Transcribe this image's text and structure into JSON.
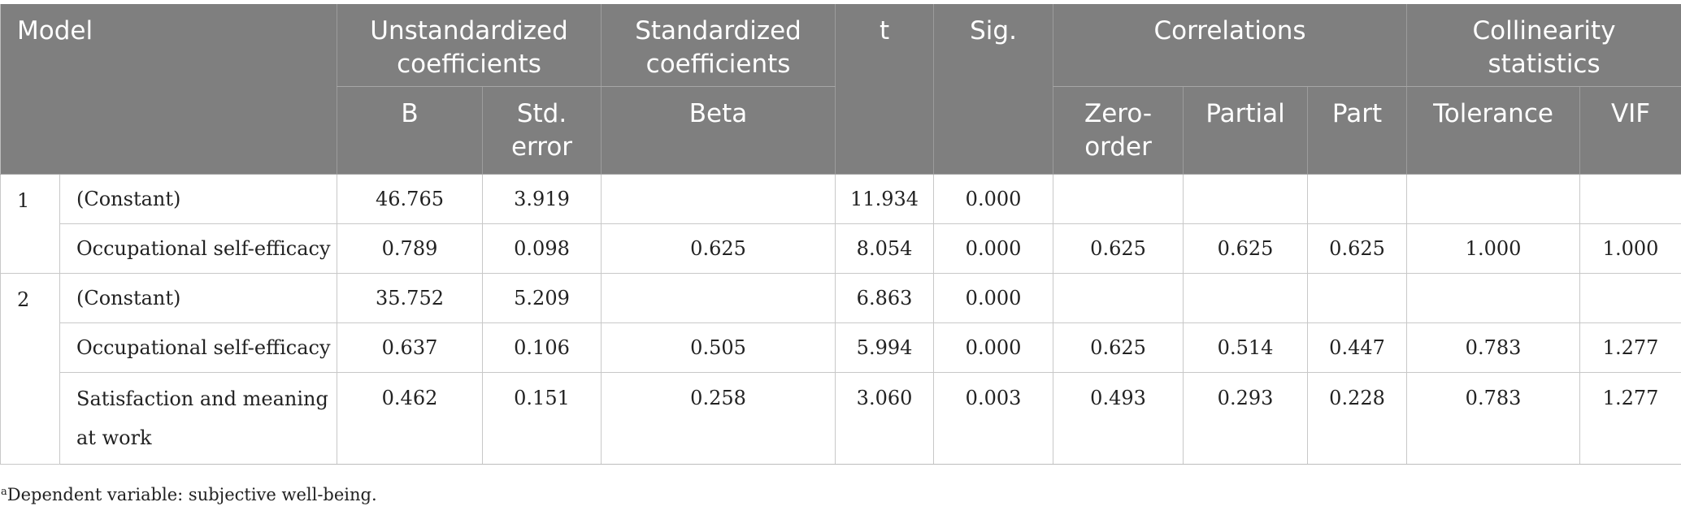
{
  "header": {
    "model": "Model",
    "unstd": "Unstandardized coefficients",
    "std": "Standardized coefficients",
    "t": "t",
    "sig": "Sig.",
    "corr": "Correlations",
    "coll": "Collinearity statistics",
    "b": "B",
    "se": "Std. error",
    "beta": "Beta",
    "zero": "Zero-order",
    "partial": "Partial",
    "part": "Part",
    "tol": "Tolerance",
    "vif": "VIF"
  },
  "rows": [
    {
      "model": "1",
      "var": "(Constant)",
      "b": "46.765",
      "se": "3.919",
      "beta": "",
      "t": "11.934",
      "sig": "0.000",
      "zero": "",
      "partial": "",
      "part": "",
      "tol": "",
      "vif": ""
    },
    {
      "model": "",
      "var": "Occupational self-efficacy",
      "b": "0.789",
      "se": "0.098",
      "beta": "0.625",
      "t": "8.054",
      "sig": "0.000",
      "zero": "0.625",
      "partial": "0.625",
      "part": "0.625",
      "tol": "1.000",
      "vif": "1.000"
    },
    {
      "model": "2",
      "var": "(Constant)",
      "b": "35.752",
      "se": "5.209",
      "beta": "",
      "t": "6.863",
      "sig": "0.000",
      "zero": "",
      "partial": "",
      "part": "",
      "tol": "",
      "vif": ""
    },
    {
      "model": "",
      "var": "Occupational self-efficacy",
      "b": "0.637",
      "se": "0.106",
      "beta": "0.505",
      "t": "5.994",
      "sig": "0.000",
      "zero": "0.625",
      "partial": "0.514",
      "part": "0.447",
      "tol": "0.783",
      "vif": "1.277"
    },
    {
      "model": "",
      "var": "Satisfaction and meaning at work",
      "b": "0.462",
      "se": "0.151",
      "beta": "0.258",
      "t": "3.060",
      "sig": "0.003",
      "zero": "0.493",
      "partial": "0.293",
      "part": "0.228",
      "tol": "0.783",
      "vif": "1.277"
    }
  ],
  "footnote": {
    "marker": "a",
    "text": "Dependent variable: subjective well-being."
  }
}
